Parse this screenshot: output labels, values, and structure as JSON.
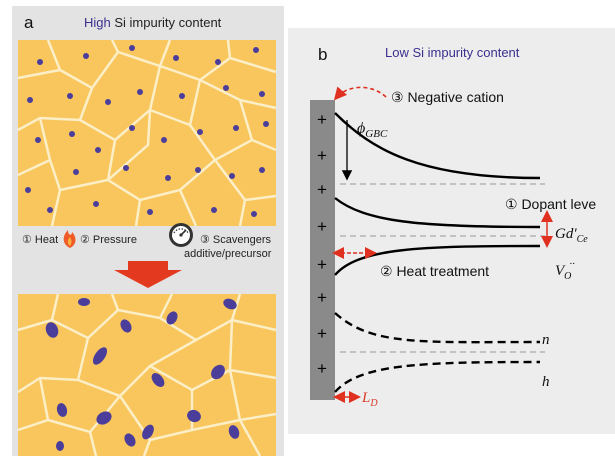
{
  "panel_a": {
    "letter": "a",
    "title_high": "High",
    "title_rest": " Si impurity content",
    "step1": "① Heat",
    "step2": "② Pressure",
    "step3_line1": "③ Scavengers",
    "step3_line2": "additive/precursor"
  },
  "panel_b": {
    "letter": "b",
    "title": "Low Si impurity content",
    "negative_cation": "③ Negative cation",
    "phi_base": "ϕ",
    "phi_sub": "GBC",
    "dopant_level": "① Dopant leve",
    "gd_base": "Gd′",
    "gd_sub": "Ce",
    "heat_treatment": "② Heat treatment",
    "vo_base": "V",
    "vo_sub": "O",
    "vo_sup": "··",
    "n_label": "n",
    "h_label": "h",
    "ld_base": "L",
    "ld_sub": "D",
    "plus_sign": "+"
  },
  "colors": {
    "grain": "#F8C65C",
    "boundary": "#FCEFC8",
    "impurity": "#4B3E9B",
    "arrow_red": "#E03020",
    "label_red": "#D83A2C",
    "panel_bg_a": "#E3E3E3",
    "panel_bg_b": "#EDEDED",
    "gb_bar": "#8A8A8A"
  }
}
